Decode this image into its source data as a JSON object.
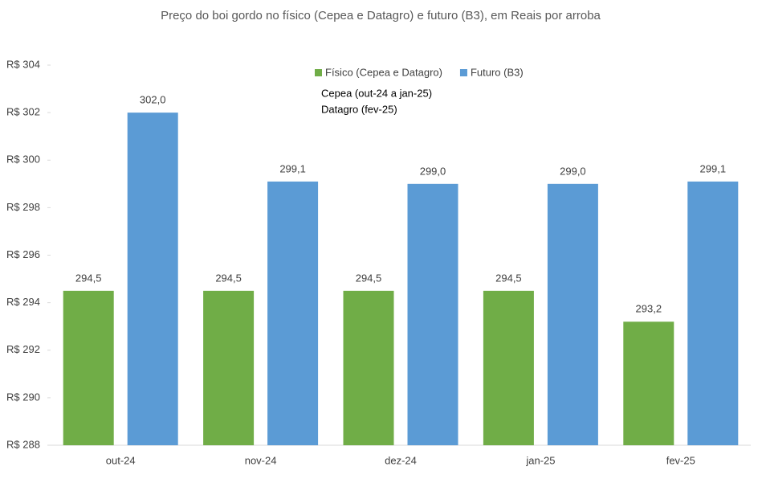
{
  "chart_data": {
    "type": "bar",
    "title": "Preço do boi gordo no físico (Cepea e Datagro) e futuro (B3), em Reais por arroba",
    "categories": [
      "out-24",
      "nov-24",
      "dez-24",
      "jan-25",
      "fev-25"
    ],
    "series": [
      {
        "name": "Físico (Cepea e Datagro)",
        "color": "#70ad47",
        "values": [
          294.5,
          294.5,
          294.5,
          294.5,
          293.2
        ],
        "value_labels": [
          "294,5",
          "294,5",
          "294,5",
          "294,5",
          "293,2"
        ]
      },
      {
        "name": "Futuro (B3)",
        "color": "#5b9bd5",
        "values": [
          302.0,
          299.1,
          299.0,
          299.0,
          299.1
        ],
        "value_labels": [
          "302,0",
          "299,1",
          "299,0",
          "299,0",
          "299,1"
        ]
      }
    ],
    "annotations": [
      "Cepea (out-24 a jan-25)",
      "Datagro (fev-25)"
    ],
    "ylim": [
      288,
      304
    ],
    "yticks": [
      {
        "value": 288,
        "label": "R$ 288"
      },
      {
        "value": 290,
        "label": "R$ 290"
      },
      {
        "value": 292,
        "label": "R$ 292"
      },
      {
        "value": 294,
        "label": "R$ 294"
      },
      {
        "value": 296,
        "label": "R$ 296"
      },
      {
        "value": 298,
        "label": "R$ 298"
      },
      {
        "value": 300,
        "label": "R$ 300"
      },
      {
        "value": 302,
        "label": "R$ 302"
      },
      {
        "value": 304,
        "label": "R$ 304"
      }
    ],
    "grid": false,
    "legend": "top"
  }
}
